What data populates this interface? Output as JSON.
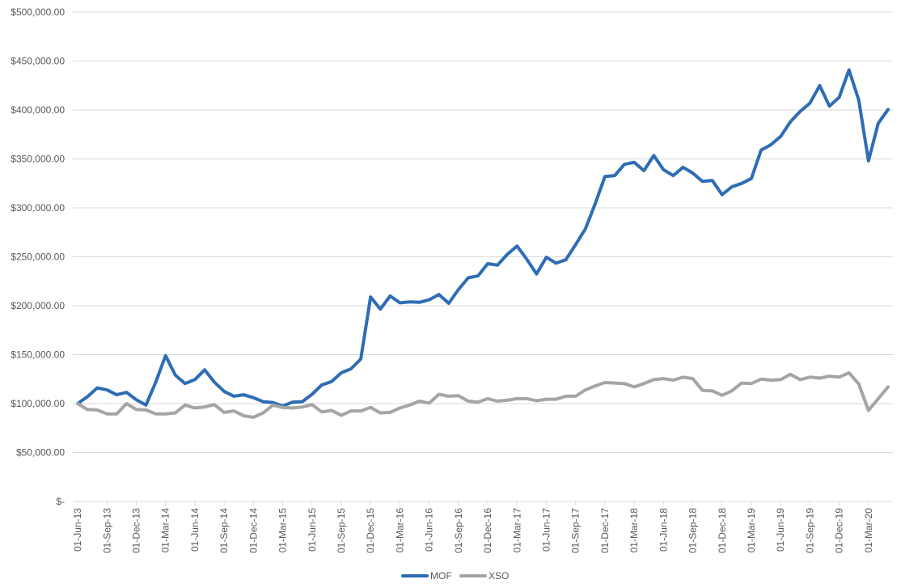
{
  "chart_data": {
    "type": "line",
    "title": "",
    "xlabel": "",
    "ylabel": "",
    "ylim": [
      0,
      500000
    ],
    "yticks": [
      0,
      50000,
      100000,
      150000,
      200000,
      250000,
      300000,
      350000,
      400000,
      450000,
      500000
    ],
    "ytick_labels": [
      "$-",
      "$50,000.00",
      "$100,000.00",
      "$150,000.00",
      "$200,000.00",
      "$250,000.00",
      "$300,000.00",
      "$350,000.00",
      "$400,000.00",
      "$450,000.00",
      "$500,000.00"
    ],
    "x_tick_labels": [
      "01-Jun-13",
      "01-Sep-13",
      "01-Dec-13",
      "01-Mar-14",
      "01-Jun-14",
      "01-Sep-14",
      "01-Dec-14",
      "01-Mar-15",
      "01-Jun-15",
      "01-Sep-15",
      "01-Dec-15",
      "01-Mar-16",
      "01-Jun-16",
      "01-Sep-16",
      "01-Dec-16",
      "01-Mar-17",
      "01-Jun-17",
      "01-Sep-17",
      "01-Dec-17",
      "01-Mar-18",
      "01-Jun-18",
      "01-Sep-18",
      "01-Dec-18",
      "01-Mar-19",
      "01-Jun-19",
      "01-Sep-19",
      "01-Dec-19",
      "01-Mar-20"
    ],
    "x": [
      "01-Jun-13",
      "01-Jul-13",
      "01-Aug-13",
      "01-Sep-13",
      "01-Oct-13",
      "01-Nov-13",
      "01-Dec-13",
      "01-Jan-14",
      "01-Feb-14",
      "01-Mar-14",
      "01-Apr-14",
      "01-May-14",
      "01-Jun-14",
      "01-Jul-14",
      "01-Aug-14",
      "01-Sep-14",
      "01-Oct-14",
      "01-Nov-14",
      "01-Dec-14",
      "01-Jan-15",
      "01-Feb-15",
      "01-Mar-15",
      "01-Apr-15",
      "01-May-15",
      "01-Jun-15",
      "01-Jul-15",
      "01-Aug-15",
      "01-Sep-15",
      "01-Oct-15",
      "01-Nov-15",
      "01-Dec-15",
      "01-Jan-16",
      "01-Feb-16",
      "01-Mar-16",
      "01-Apr-16",
      "01-May-16",
      "01-Jun-16",
      "01-Jul-16",
      "01-Aug-16",
      "01-Sep-16",
      "01-Oct-16",
      "01-Nov-16",
      "01-Dec-16",
      "01-Jan-17",
      "01-Feb-17",
      "01-Mar-17",
      "01-Apr-17",
      "01-May-17",
      "01-Jun-17",
      "01-Jul-17",
      "01-Aug-17",
      "01-Sep-17",
      "01-Oct-17",
      "01-Nov-17",
      "01-Dec-17",
      "01-Jan-18",
      "01-Feb-18",
      "01-Mar-18",
      "01-Apr-18",
      "01-May-18",
      "01-Jun-18",
      "01-Jul-18",
      "01-Aug-18",
      "01-Sep-18",
      "01-Oct-18",
      "01-Nov-18",
      "01-Dec-18",
      "01-Jan-19",
      "01-Feb-19",
      "01-Mar-19",
      "01-Apr-19",
      "01-May-19",
      "01-Jun-19",
      "01-Jul-19",
      "01-Aug-19",
      "01-Sep-19",
      "01-Oct-19",
      "01-Nov-19",
      "01-Dec-19",
      "01-Jan-20",
      "01-Feb-20",
      "01-Mar-20",
      "01-Apr-20",
      "01-May-20"
    ],
    "series": [
      {
        "name": "MOF",
        "color": "#2e6db4",
        "values": [
          100000,
          107000,
          116000,
          114000,
          109000,
          111500,
          104000,
          98500,
          122000,
          149000,
          129000,
          120500,
          124500,
          134500,
          122000,
          112500,
          107500,
          109000,
          106000,
          102000,
          101000,
          97500,
          101500,
          102000,
          109500,
          119000,
          122500,
          131500,
          135500,
          145500,
          209000,
          196500,
          210000,
          203000,
          204000,
          203500,
          206000,
          211500,
          202500,
          216500,
          228500,
          230500,
          243000,
          241500,
          252500,
          261000,
          247500,
          232500,
          249500,
          243500,
          247000,
          262500,
          278500,
          304000,
          332000,
          333000,
          344500,
          346500,
          338000,
          353500,
          339000,
          333000,
          341500,
          335500,
          327000,
          328000,
          313500,
          321500,
          325000,
          330000,
          359000,
          364500,
          373000,
          388000,
          398500,
          407000,
          425000,
          404000,
          413000,
          441000,
          410000,
          348000,
          386500,
          400500
        ]
      },
      {
        "name": "XSO",
        "color": "#a5a5a5",
        "values": [
          100000,
          94000,
          93500,
          89500,
          89500,
          100000,
          94000,
          93500,
          89500,
          89500,
          90500,
          98500,
          95500,
          96500,
          99000,
          91000,
          92500,
          87500,
          86000,
          90500,
          98500,
          96000,
          95500,
          96500,
          99000,
          91500,
          93000,
          88000,
          92500,
          92500,
          96000,
          90500,
          91000,
          95500,
          98500,
          102500,
          100500,
          109500,
          107500,
          108000,
          102500,
          101500,
          105000,
          102500,
          103500,
          105000,
          105000,
          103000,
          104500,
          104500,
          107500,
          107500,
          114000,
          118000,
          121500,
          121000,
          120500,
          117000,
          120500,
          124500,
          125500,
          124000,
          127000,
          125500,
          113500,
          113000,
          108500,
          113000,
          121000,
          120500,
          125000,
          124000,
          124500,
          130000,
          124500,
          127000,
          126000,
          128000,
          127000,
          131500,
          120000,
          93000,
          105000,
          117000
        ]
      }
    ],
    "grid": true,
    "legend": "bottom-center"
  }
}
